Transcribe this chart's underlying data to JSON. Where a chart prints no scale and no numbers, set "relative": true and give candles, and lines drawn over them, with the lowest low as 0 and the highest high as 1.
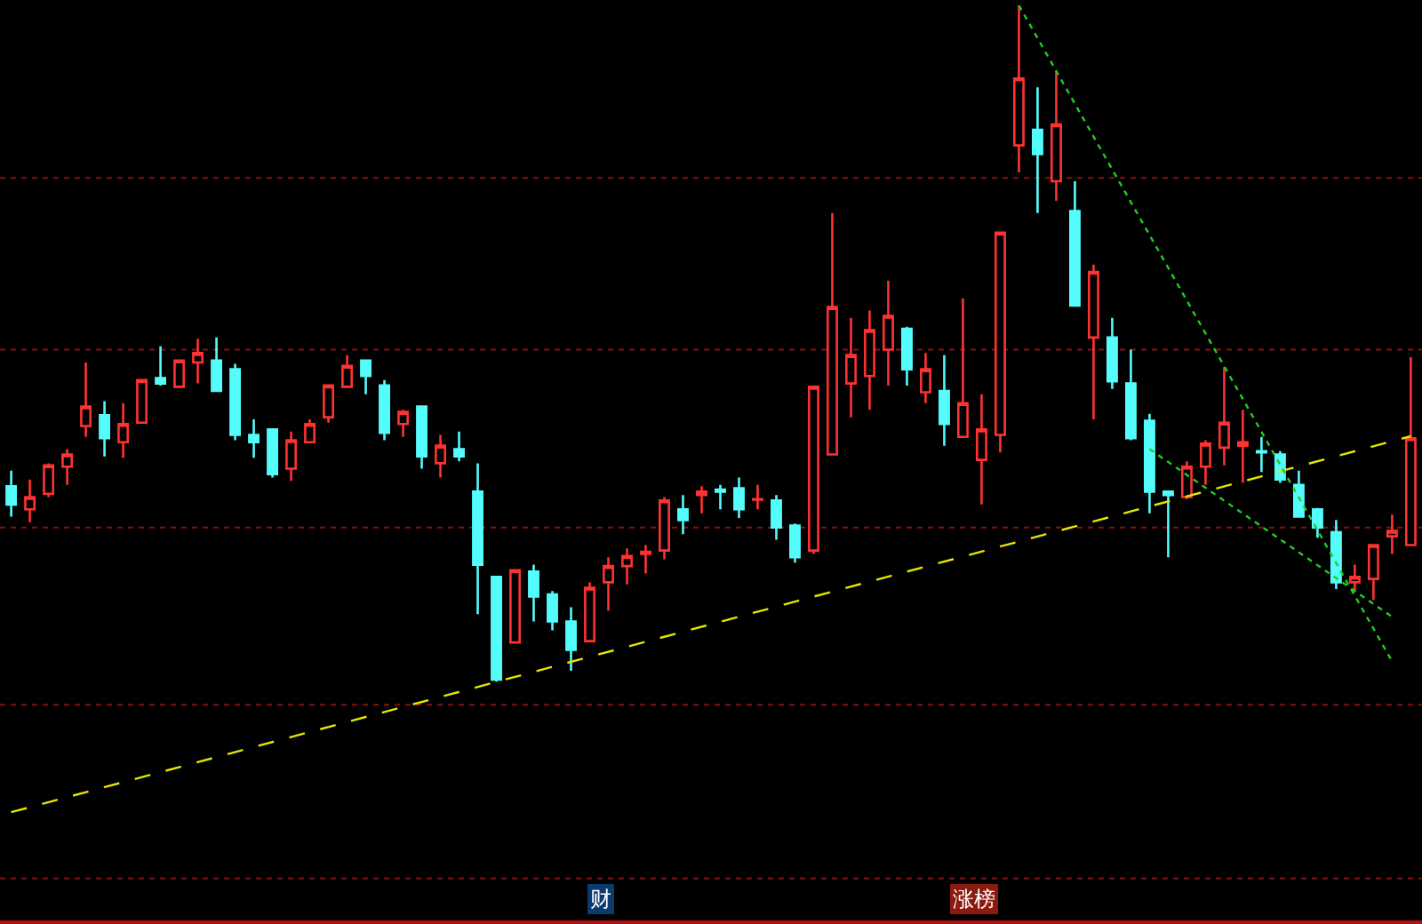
{
  "chart_data": {
    "type": "candlestick",
    "relative": true,
    "ref_lines": [
      {
        "axis": "y",
        "value": 0.745,
        "color": "#8a1010",
        "line_style": "dotted"
      },
      {
        "axis": "y",
        "value": 0.491,
        "color": "#8a1010",
        "line_style": "dotted"
      },
      {
        "axis": "y",
        "value": 0.228,
        "color": "#8a1010",
        "line_style": "dotted"
      },
      {
        "axis": "y",
        "value": -0.034,
        "color": "#8a1010",
        "line_style": "dotted"
      },
      {
        "axis": "y",
        "value": -0.291,
        "color": "#8a1010",
        "line_style": "dotted"
      }
    ],
    "categories": [
      null,
      null,
      null,
      null,
      null,
      null,
      null,
      null,
      null,
      null,
      null,
      null,
      null,
      null,
      null,
      null,
      null,
      null,
      null,
      null,
      null,
      null,
      null,
      null,
      null,
      null,
      null,
      null,
      null,
      null,
      null,
      null,
      null,
      null,
      null,
      null,
      null,
      null,
      null,
      null,
      null,
      null,
      null,
      null,
      null,
      null,
      null,
      null,
      null,
      null,
      null,
      null,
      null,
      null,
      null,
      null,
      null,
      null,
      null,
      null,
      null,
      null,
      null,
      null,
      null,
      null,
      null,
      null,
      null,
      null,
      null,
      null,
      null,
      null,
      null,
      null
    ],
    "ohlc": [
      [
        0.289,
        0.312,
        0.244,
        0.262
      ],
      [
        0.255,
        0.299,
        0.236,
        0.273
      ],
      [
        0.278,
        0.323,
        0.273,
        0.32
      ],
      [
        0.318,
        0.344,
        0.291,
        0.336
      ],
      [
        0.378,
        0.472,
        0.362,
        0.407
      ],
      [
        0.394,
        0.415,
        0.333,
        0.36
      ],
      [
        0.354,
        0.412,
        0.331,
        0.381
      ],
      [
        0.383,
        0.446,
        0.383,
        0.446
      ],
      [
        0.449,
        0.496,
        0.438,
        0.441
      ],
      [
        0.436,
        0.475,
        0.436,
        0.475
      ],
      [
        0.472,
        0.507,
        0.441,
        0.486
      ],
      [
        0.475,
        0.509,
        0.43,
        0.43
      ],
      [
        0.462,
        0.47,
        0.357,
        0.365
      ],
      [
        0.365,
        0.388,
        0.331,
        0.354
      ],
      [
        0.373,
        0.373,
        0.302,
        0.307
      ],
      [
        0.315,
        0.37,
        0.297,
        0.357
      ],
      [
        0.354,
        0.388,
        0.354,
        0.381
      ],
      [
        0.391,
        0.438,
        0.383,
        0.438
      ],
      [
        0.436,
        0.483,
        0.436,
        0.467
      ],
      [
        0.475,
        0.475,
        0.425,
        0.452
      ],
      [
        0.438,
        0.446,
        0.357,
        0.368
      ],
      [
        0.381,
        0.402,
        0.362,
        0.399
      ],
      [
        0.407,
        0.407,
        0.315,
        0.333
      ],
      [
        0.323,
        0.365,
        0.302,
        0.349
      ],
      [
        0.344,
        0.37,
        0.326,
        0.333
      ],
      [
        0.281,
        0.323,
        0.1,
        0.173
      ],
      [
        0.155,
        0.155,
        0,
        0.003
      ],
      [
        0.058,
        0.165,
        0.058,
        0.165
      ],
      [
        0.163,
        0.173,
        0.089,
        0.126
      ],
      [
        0.129,
        0.134,
        0.076,
        0.089
      ],
      [
        0.089,
        0.11,
        0.016,
        0.047
      ],
      [
        0.06,
        0.147,
        0.06,
        0.139
      ],
      [
        0.147,
        0.184,
        0.105,
        0.171
      ],
      [
        0.171,
        0.197,
        0.144,
        0.186
      ],
      [
        0.189,
        0.202,
        0.16,
        0.192
      ],
      [
        0.194,
        0.273,
        0.181,
        0.268
      ],
      [
        0.255,
        0.276,
        0.218,
        0.239
      ],
      [
        0.276,
        0.289,
        0.249,
        0.281
      ],
      [
        0.284,
        0.291,
        0.255,
        0.281
      ],
      [
        0.286,
        0.302,
        0.242,
        0.255
      ],
      [
        0.269,
        0.291,
        0.255,
        0.27
      ],
      [
        0.268,
        0.276,
        0.21,
        0.228
      ],
      [
        0.231,
        0.234,
        0.176,
        0.184
      ],
      [
        0.194,
        0.436,
        0.189,
        0.436
      ],
      [
        0.336,
        0.693,
        0.336,
        0.554
      ],
      [
        0.441,
        0.538,
        0.391,
        0.483
      ],
      [
        0.452,
        0.549,
        0.402,
        0.52
      ],
      [
        0.491,
        0.593,
        0.438,
        0.541
      ],
      [
        0.522,
        0.525,
        0.438,
        0.462
      ],
      [
        0.428,
        0.486,
        0.412,
        0.462
      ],
      [
        0.43,
        0.483,
        0.349,
        0.381
      ],
      [
        0.362,
        0.567,
        0.362,
        0.412
      ],
      [
        0.328,
        0.425,
        0.262,
        0.373
      ],
      [
        0.365,
        0.664,
        0.339,
        0.664
      ],
      [
        0.793,
        1,
        0.753,
        0.892
      ],
      [
        0.816,
        0.879,
        0.693,
        0.78
      ],
      [
        0.74,
        0.903,
        0.711,
        0.824
      ],
      [
        0.696,
        0.74,
        0.556,
        0.556
      ],
      [
        0.509,
        0.617,
        0.388,
        0.606
      ],
      [
        0.509,
        0.538,
        0.433,
        0.444
      ],
      [
        0.441,
        0.491,
        0.357,
        0.36
      ],
      [
        0.386,
        0.396,
        0.249,
        0.281
      ],
      [
        0.281,
        0.281,
        0.184,
        0.276
      ],
      [
        0.273,
        0.326,
        0.27,
        0.318
      ],
      [
        0.318,
        0.357,
        0.291,
        0.352
      ],
      [
        0.346,
        0.465,
        0.32,
        0.383
      ],
      [
        0.349,
        0.402,
        0.294,
        0.354
      ],
      [
        0.341,
        0.362,
        0.31,
        0.339
      ],
      [
        0.336,
        0.341,
        0.294,
        0.299
      ],
      [
        0.291,
        0.312,
        0.244,
        0.244
      ],
      [
        0.255,
        0.257,
        0.213,
        0.228
      ],
      [
        0.221,
        0.239,
        0.137,
        0.147
      ],
      [
        0.147,
        0.173,
        0.134,
        0.155
      ],
      [
        0.152,
        0.202,
        0.121,
        0.202
      ],
      [
        0.215,
        0.247,
        0.189,
        0.223
      ],
      [
        0.202,
        0.48,
        0.202,
        0.36
      ]
    ],
    "colors": [
      "#54fcfc",
      "#ff3232",
      "#ff3232",
      "#ff3232",
      "#ff3232",
      "#54fcfc",
      "#ff3232",
      "#ff3232",
      "#54fcfc",
      "#ff3232",
      "#ff3232",
      "#54fcfc",
      "#54fcfc",
      "#54fcfc",
      "#54fcfc",
      "#ff3232",
      "#ff3232",
      "#ff3232",
      "#ff3232",
      "#54fcfc",
      "#54fcfc",
      "#ff3232",
      "#54fcfc",
      "#ff3232",
      "#54fcfc",
      "#54fcfc",
      "#54fcfc",
      "#ff3232",
      "#54fcfc",
      "#54fcfc",
      "#54fcfc",
      "#ff3232",
      "#ff3232",
      "#ff3232",
      "#ff3232",
      "#ff3232",
      "#54fcfc",
      "#ff3232",
      "#54fcfc",
      "#54fcfc",
      "#ff3232",
      "#54fcfc",
      "#54fcfc",
      "#ff3232",
      "#ff3232",
      "#ff3232",
      "#ff3232",
      "#ff3232",
      "#54fcfc",
      "#ff3232",
      "#54fcfc",
      "#ff3232",
      "#ff3232",
      "#ff3232",
      "#ff3232",
      "#54fcfc",
      "#ff3232",
      "#54fcfc",
      "#ff3232",
      "#54fcfc",
      "#54fcfc",
      "#54fcfc",
      "#54fcfc",
      "#ff3232",
      "#ff3232",
      "#ff3232",
      "#ff3232",
      "#54fcfc",
      "#54fcfc",
      "#54fcfc",
      "#54fcfc",
      "#54fcfc",
      "#ff3232",
      "#ff3232",
      "#ff3232",
      "#ff3232"
    ],
    "series": [
      {
        "type": "line",
        "values": [
          -0.193,
          null,
          null,
          null,
          null,
          null,
          null,
          null,
          null,
          null,
          null,
          null,
          null,
          null,
          null,
          null,
          null,
          null,
          null,
          null,
          null,
          null,
          null,
          null,
          null,
          null,
          null,
          null,
          null,
          null,
          null,
          null,
          null,
          null,
          null,
          null,
          null,
          null,
          null,
          null,
          null,
          null,
          null,
          null,
          null,
          null,
          null,
          null,
          null,
          null,
          null,
          null,
          null,
          null,
          null,
          null,
          null,
          null,
          null,
          null,
          null,
          null,
          null,
          null,
          null,
          null,
          null,
          null,
          null,
          null,
          null,
          null,
          null,
          null,
          null,
          0.363
        ],
        "color": "#e6e600",
        "line_style": "dashed"
      },
      {
        "type": "line",
        "values": [
          null,
          null,
          null,
          null,
          null,
          null,
          null,
          null,
          null,
          null,
          null,
          null,
          null,
          null,
          null,
          null,
          null,
          null,
          null,
          null,
          null,
          null,
          null,
          null,
          null,
          null,
          null,
          null,
          null,
          null,
          null,
          null,
          null,
          null,
          null,
          null,
          null,
          null,
          null,
          null,
          null,
          null,
          null,
          null,
          null,
          null,
          null,
          null,
          null,
          null,
          null,
          null,
          null,
          null,
          1,
          null,
          null,
          null,
          null,
          null,
          null,
          null,
          null,
          null,
          null,
          null,
          null,
          null,
          null,
          null,
          null,
          null,
          null,
          null,
          0.03,
          null
        ],
        "color": "#22cc22",
        "line_style": "dotted"
      },
      {
        "type": "line",
        "values": [
          null,
          null,
          null,
          null,
          null,
          null,
          null,
          null,
          null,
          null,
          null,
          null,
          null,
          null,
          null,
          null,
          null,
          null,
          null,
          null,
          null,
          null,
          null,
          null,
          null,
          null,
          null,
          null,
          null,
          null,
          null,
          null,
          null,
          null,
          null,
          null,
          null,
          null,
          null,
          null,
          null,
          null,
          null,
          null,
          null,
          null,
          null,
          null,
          null,
          null,
          null,
          null,
          null,
          null,
          null,
          null,
          null,
          null,
          null,
          null,
          null,
          0.344,
          null,
          null,
          null,
          null,
          null,
          null,
          null,
          null,
          null,
          null,
          null,
          null,
          0.096,
          null
        ],
        "color": "#22cc22",
        "line_style": "dotted"
      }
    ],
    "annotations": [
      "财",
      "涨榜"
    ]
  }
}
